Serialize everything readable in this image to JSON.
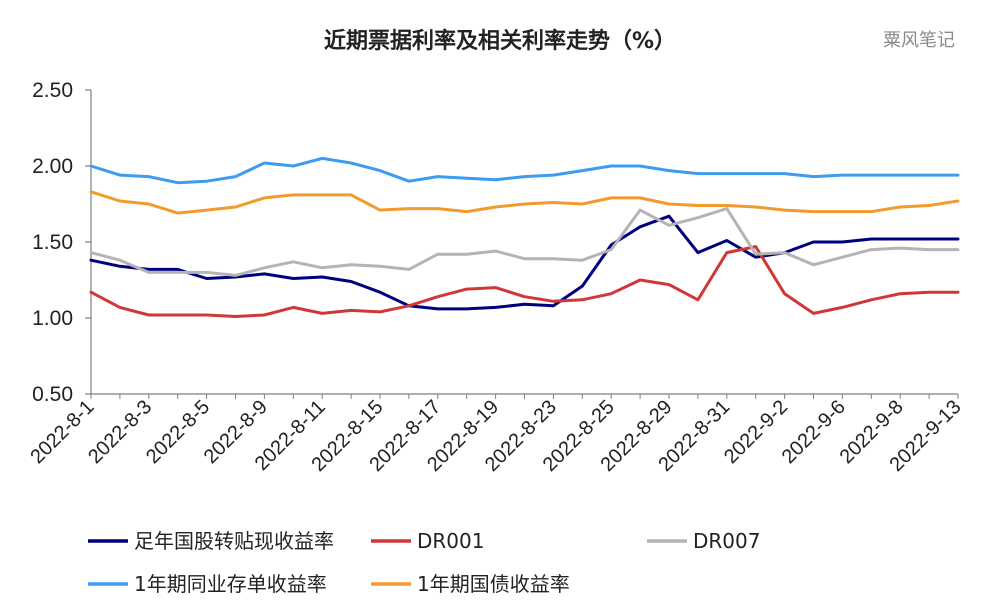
{
  "chart_data": {
    "type": "line",
    "title": "近期票据利率及相关利率走势（%）",
    "watermark": "粟风笔记",
    "ylim": [
      0.5,
      2.5
    ],
    "yticks": [
      "2.50",
      "2.00",
      "1.50",
      "1.00",
      "0.50"
    ],
    "grid": false,
    "legend_position": "bottom",
    "x": [
      "2022-8-1",
      "2022-8-2",
      "2022-8-3",
      "2022-8-4",
      "2022-8-5",
      "2022-8-8",
      "2022-8-9",
      "2022-8-10",
      "2022-8-11",
      "2022-8-12",
      "2022-8-15",
      "2022-8-16",
      "2022-8-17",
      "2022-8-18",
      "2022-8-19",
      "2022-8-22",
      "2022-8-23",
      "2022-8-24",
      "2022-8-25",
      "2022-8-26",
      "2022-8-29",
      "2022-8-30",
      "2022-8-31",
      "2022-9-1",
      "2022-9-2",
      "2022-9-5",
      "2022-9-6",
      "2022-9-7",
      "2022-9-8",
      "2022-9-9",
      "2022-9-13"
    ],
    "xtick_labels": [
      "2022-8-1",
      "2022-8-3",
      "2022-8-5",
      "2022-8-9",
      "2022-8-11",
      "2022-8-15",
      "2022-8-17",
      "2022-8-19",
      "2022-8-23",
      "2022-8-25",
      "2022-8-29",
      "2022-8-31",
      "2022-9-2",
      "2022-9-6",
      "2022-9-8",
      "2022-9-13"
    ],
    "series": [
      {
        "name": "足年国股转贴现收益率",
        "color": "#00007f",
        "values": [
          1.38,
          1.34,
          1.32,
          1.32,
          1.26,
          1.27,
          1.29,
          1.26,
          1.27,
          1.24,
          1.17,
          1.08,
          1.06,
          1.06,
          1.07,
          1.09,
          1.08,
          1.21,
          1.48,
          1.6,
          1.67,
          1.43,
          1.51,
          1.4,
          1.43,
          1.5,
          1.5,
          1.52,
          1.52,
          1.52,
          1.52
        ]
      },
      {
        "name": "DR001",
        "color": "#d03737",
        "values": [
          1.17,
          1.07,
          1.02,
          1.02,
          1.02,
          1.01,
          1.02,
          1.07,
          1.03,
          1.05,
          1.04,
          1.08,
          1.14,
          1.19,
          1.2,
          1.14,
          1.11,
          1.12,
          1.16,
          1.25,
          1.22,
          1.12,
          1.43,
          1.47,
          1.16,
          1.03,
          1.07,
          1.12,
          1.16,
          1.17,
          1.17
        ]
      },
      {
        "name": "DR007",
        "color": "#b4b4b4",
        "values": [
          1.43,
          1.38,
          1.3,
          1.3,
          1.3,
          1.28,
          1.33,
          1.37,
          1.33,
          1.35,
          1.34,
          1.32,
          1.42,
          1.42,
          1.44,
          1.39,
          1.39,
          1.38,
          1.45,
          1.71,
          1.61,
          1.66,
          1.72,
          1.42,
          1.43,
          1.35,
          1.4,
          1.45,
          1.46,
          1.45,
          1.45
        ]
      },
      {
        "name": "1年期同业存单收益率",
        "color": "#3d9bf0",
        "values": [
          2.0,
          1.94,
          1.93,
          1.89,
          1.9,
          1.93,
          2.02,
          2.0,
          2.05,
          2.02,
          1.97,
          1.9,
          1.93,
          1.92,
          1.91,
          1.93,
          1.94,
          1.97,
          2.0,
          2.0,
          1.97,
          1.95,
          1.95,
          1.95,
          1.95,
          1.93,
          1.94,
          1.94,
          1.94,
          1.94,
          1.94
        ]
      },
      {
        "name": "1年期国债收益率",
        "color": "#f39a2c",
        "values": [
          1.83,
          1.77,
          1.75,
          1.69,
          1.71,
          1.73,
          1.79,
          1.81,
          1.81,
          1.81,
          1.71,
          1.72,
          1.72,
          1.7,
          1.73,
          1.75,
          1.76,
          1.75,
          1.79,
          1.79,
          1.75,
          1.74,
          1.74,
          1.73,
          1.71,
          1.7,
          1.7,
          1.7,
          1.73,
          1.74,
          1.77
        ]
      }
    ]
  }
}
